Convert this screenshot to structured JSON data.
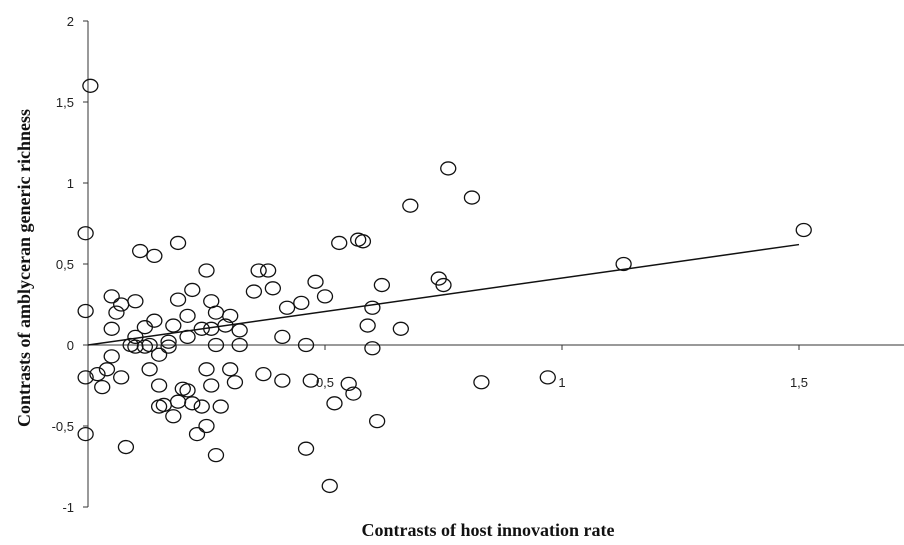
{
  "chart_data": {
    "type": "scatter",
    "title": "",
    "xlabel": "Contrasts of host innovation rate",
    "ylabel": "Contrasts of amblyceran generic richness",
    "xlim": [
      0,
      1.75
    ],
    "ylim": [
      -1,
      2
    ],
    "x_ticks": [
      {
        "value": 0.5,
        "label": "0,5"
      },
      {
        "value": 1,
        "label": "1"
      },
      {
        "value": 1.5,
        "label": "1,5"
      }
    ],
    "y_ticks": [
      {
        "value": 2,
        "label": "2"
      },
      {
        "value": 1.5,
        "label": "1,5"
      },
      {
        "value": 1,
        "label": "1"
      },
      {
        "value": 0.5,
        "label": "0,5"
      },
      {
        "value": 0,
        "label": "0"
      },
      {
        "value": -0.5,
        "label": "-0,5"
      },
      {
        "value": -1,
        "label": "-1"
      }
    ],
    "grid": false,
    "legend": "none",
    "trendline": {
      "x": [
        0,
        1.5
      ],
      "y": [
        0.0,
        0.62
      ]
    },
    "points": [
      {
        "x": 0.005,
        "y": 1.6
      },
      {
        "x": -0.005,
        "y": 0.69
      },
      {
        "x": -0.005,
        "y": 0.21
      },
      {
        "x": -0.005,
        "y": -0.2
      },
      {
        "x": -0.005,
        "y": -0.55
      },
      {
        "x": 0.02,
        "y": -0.18
      },
      {
        "x": 0.03,
        "y": -0.26
      },
      {
        "x": 0.04,
        "y": -0.15
      },
      {
        "x": 0.05,
        "y": 0.3
      },
      {
        "x": 0.05,
        "y": 0.1
      },
      {
        "x": 0.05,
        "y": -0.07
      },
      {
        "x": 0.06,
        "y": 0.2
      },
      {
        "x": 0.07,
        "y": 0.25
      },
      {
        "x": 0.07,
        "y": -0.2
      },
      {
        "x": 0.08,
        "y": -0.63
      },
      {
        "x": 0.09,
        "y": 0.0
      },
      {
        "x": 0.1,
        "y": 0.27
      },
      {
        "x": 0.1,
        "y": 0.05
      },
      {
        "x": 0.1,
        "y": -0.01
      },
      {
        "x": 0.11,
        "y": 0.58
      },
      {
        "x": 0.12,
        "y": 0.11
      },
      {
        "x": 0.12,
        "y": -0.01
      },
      {
        "x": 0.13,
        "y": 0.0
      },
      {
        "x": 0.13,
        "y": -0.15
      },
      {
        "x": 0.14,
        "y": 0.55
      },
      {
        "x": 0.14,
        "y": 0.15
      },
      {
        "x": 0.15,
        "y": -0.06
      },
      {
        "x": 0.15,
        "y": -0.25
      },
      {
        "x": 0.15,
        "y": -0.38
      },
      {
        "x": 0.16,
        "y": -0.37
      },
      {
        "x": 0.17,
        "y": 0.02
      },
      {
        "x": 0.17,
        "y": -0.01
      },
      {
        "x": 0.18,
        "y": 0.12
      },
      {
        "x": 0.18,
        "y": -0.44
      },
      {
        "x": 0.19,
        "y": 0.63
      },
      {
        "x": 0.19,
        "y": 0.28
      },
      {
        "x": 0.19,
        "y": -0.35
      },
      {
        "x": 0.2,
        "y": -0.27
      },
      {
        "x": 0.21,
        "y": 0.18
      },
      {
        "x": 0.21,
        "y": 0.05
      },
      {
        "x": 0.21,
        "y": -0.28
      },
      {
        "x": 0.22,
        "y": 0.34
      },
      {
        "x": 0.22,
        "y": -0.36
      },
      {
        "x": 0.23,
        "y": -0.55
      },
      {
        "x": 0.24,
        "y": 0.1
      },
      {
        "x": 0.24,
        "y": -0.38
      },
      {
        "x": 0.25,
        "y": 0.46
      },
      {
        "x": 0.25,
        "y": -0.5
      },
      {
        "x": 0.25,
        "y": -0.15
      },
      {
        "x": 0.26,
        "y": 0.27
      },
      {
        "x": 0.26,
        "y": 0.1
      },
      {
        "x": 0.26,
        "y": -0.25
      },
      {
        "x": 0.27,
        "y": 0.2
      },
      {
        "x": 0.27,
        "y": 0.0
      },
      {
        "x": 0.27,
        "y": -0.68
      },
      {
        "x": 0.28,
        "y": -0.38
      },
      {
        "x": 0.29,
        "y": 0.12
      },
      {
        "x": 0.3,
        "y": 0.18
      },
      {
        "x": 0.3,
        "y": -0.15
      },
      {
        "x": 0.31,
        "y": -0.23
      },
      {
        "x": 0.32,
        "y": 0.09
      },
      {
        "x": 0.32,
        "y": 0.0
      },
      {
        "x": 0.35,
        "y": 0.33
      },
      {
        "x": 0.36,
        "y": 0.46
      },
      {
        "x": 0.37,
        "y": -0.18
      },
      {
        "x": 0.38,
        "y": 0.46
      },
      {
        "x": 0.39,
        "y": 0.35
      },
      {
        "x": 0.41,
        "y": 0.05
      },
      {
        "x": 0.41,
        "y": -0.22
      },
      {
        "x": 0.42,
        "y": 0.23
      },
      {
        "x": 0.45,
        "y": 0.26
      },
      {
        "x": 0.46,
        "y": 0.0
      },
      {
        "x": 0.46,
        "y": -0.64
      },
      {
        "x": 0.47,
        "y": -0.22
      },
      {
        "x": 0.48,
        "y": 0.39
      },
      {
        "x": 0.5,
        "y": 0.3
      },
      {
        "x": 0.51,
        "y": -0.87
      },
      {
        "x": 0.52,
        "y": -0.36
      },
      {
        "x": 0.53,
        "y": 0.63
      },
      {
        "x": 0.55,
        "y": -0.24
      },
      {
        "x": 0.56,
        "y": -0.3
      },
      {
        "x": 0.57,
        "y": 0.65
      },
      {
        "x": 0.58,
        "y": 0.64
      },
      {
        "x": 0.59,
        "y": 0.12
      },
      {
        "x": 0.6,
        "y": 0.23
      },
      {
        "x": 0.6,
        "y": -0.02
      },
      {
        "x": 0.61,
        "y": -0.47
      },
      {
        "x": 0.62,
        "y": 0.37
      },
      {
        "x": 0.66,
        "y": 0.1
      },
      {
        "x": 0.68,
        "y": 0.86
      },
      {
        "x": 0.74,
        "y": 0.41
      },
      {
        "x": 0.75,
        "y": 0.37
      },
      {
        "x": 0.76,
        "y": 1.09
      },
      {
        "x": 0.81,
        "y": 0.91
      },
      {
        "x": 0.83,
        "y": -0.23
      },
      {
        "x": 0.97,
        "y": -0.2
      },
      {
        "x": 1.13,
        "y": 0.5
      },
      {
        "x": 1.51,
        "y": 0.71
      }
    ]
  }
}
